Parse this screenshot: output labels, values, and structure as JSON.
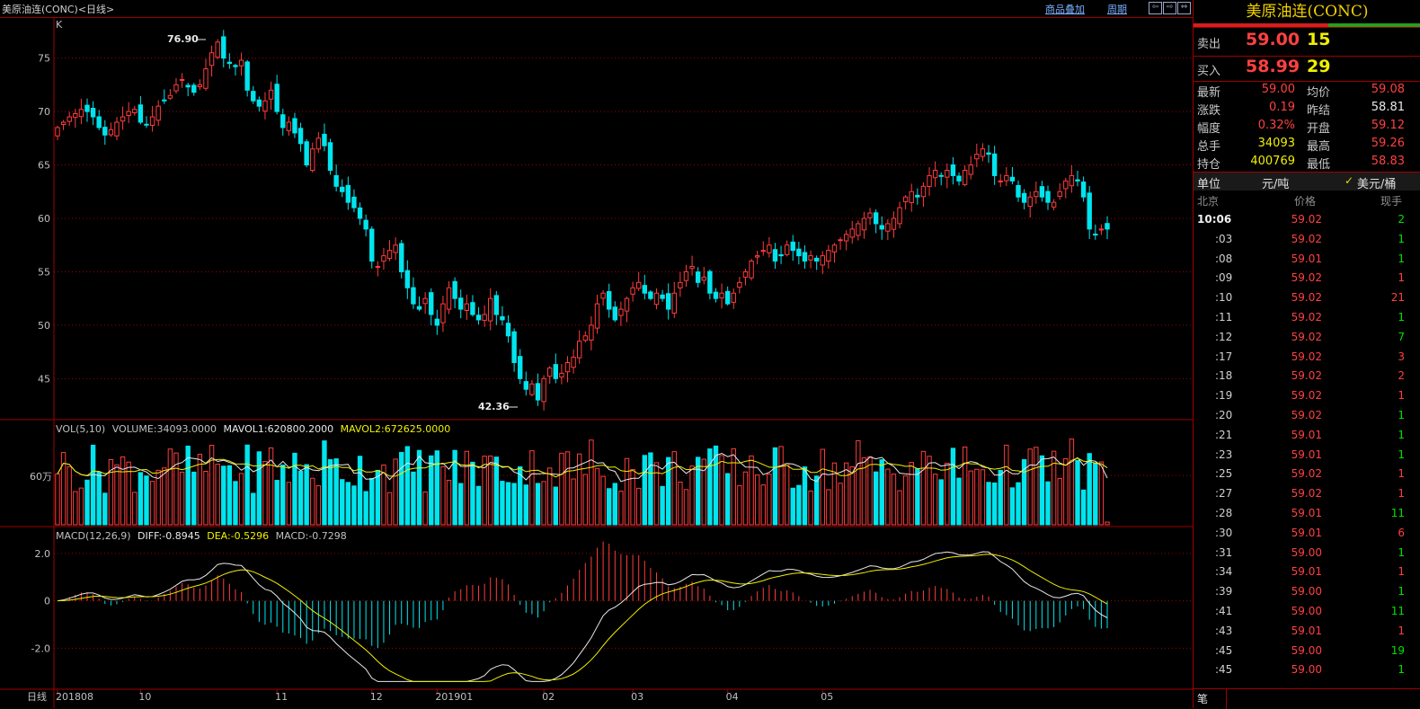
{
  "window": {
    "title": "美原油连(CONC)<日线>",
    "overlay_link": "商品叠加",
    "period_link": "周期",
    "nav_icons": [
      "arrow-left-icon",
      "arrow-right-icon",
      "arrow-both-icon"
    ]
  },
  "chart_labels": {
    "kline_tag": "K",
    "high_mark": "76.90",
    "low_mark": "42.36",
    "vol_legend": "VOL(5,10)",
    "vol_value": "VOLUME:34093.0000",
    "mavol1": "MAVOL1:620800.2000",
    "mavol2": "MAVOL2:672625.0000",
    "vol_tick": "60万",
    "macd_legend": "MACD(12,26,9)",
    "diff": "DIFF:-0.8945",
    "dea": "DEA:-0.5296",
    "macd": "MACD:-0.7298",
    "period_label": "日线"
  },
  "colors": {
    "up": "#ff3c3c",
    "down": "#00e5ee",
    "grid": "#a00000",
    "yellow": "#f0f000",
    "white": "#e8e8e8"
  },
  "chart_data": {
    "type": "candlestick",
    "price_axis_ticks": [
      75,
      70,
      65,
      60,
      55,
      50,
      45
    ],
    "price_ylim": [
      42,
      78
    ],
    "x_tick_labels": [
      "201808",
      "10",
      "11",
      "12",
      "201901",
      "02",
      "03",
      "04",
      "05"
    ],
    "x_tick_index": [
      0,
      14,
      37,
      53,
      64,
      82,
      97,
      113,
      129
    ],
    "close_approx": [
      68.5,
      69.0,
      69.5,
      69.8,
      70.2,
      70.0,
      69.5,
      68.5,
      67.8,
      68.3,
      69.0,
      69.5,
      70.0,
      70.2,
      69.0,
      68.8,
      69.5,
      70.5,
      71.0,
      71.5,
      72.5,
      73.0,
      72.3,
      71.8,
      72.5,
      74.0,
      75.5,
      76.5,
      75.0,
      74.5,
      74.2,
      74.8,
      72.0,
      71.0,
      70.5,
      71.0,
      72.0,
      70.0,
      68.5,
      69.0,
      68.0,
      67.0,
      65.0,
      66.5,
      67.5,
      66.8,
      64.5,
      63.0,
      62.5,
      61.5,
      61.0,
      60.0,
      59.0,
      56.0,
      55.5,
      56.5,
      57.0,
      57.5,
      55.0,
      53.5,
      52.0,
      51.5,
      52.5,
      51.0,
      50.0,
      52.0,
      53.5,
      52.5,
      51.5,
      52.0,
      51.0,
      50.5,
      51.0,
      52.5,
      51.0,
      50.5,
      49.0,
      46.5,
      45.0,
      44.0,
      44.5,
      43.0,
      45.0,
      46.0,
      45.0,
      45.5,
      46.5,
      47.0,
      48.5,
      49.0,
      50.0,
      52.0,
      53.0,
      51.5,
      50.5,
      51.5,
      52.5,
      53.5,
      54.0,
      53.0,
      52.5,
      53.0,
      52.5,
      51.5,
      53.0,
      54.0,
      55.0,
      55.5,
      54.0,
      54.5,
      53.0,
      52.5,
      53.0,
      52.0,
      53.0,
      54.0,
      55.0,
      56.0,
      56.5,
      57.0,
      57.5,
      56.0,
      56.5,
      57.5,
      57.0,
      56.5,
      56.0,
      56.5,
      56.0,
      56.5,
      57.0,
      57.5,
      58.0,
      58.5,
      59.0,
      59.5,
      60.0,
      60.5,
      59.5,
      59.0,
      59.5,
      60.0,
      61.0,
      62.0,
      62.5,
      62.0,
      63.0,
      64.0,
      64.5,
      64.0,
      64.5,
      64.0,
      63.5,
      64.5,
      65.0,
      66.0,
      66.5,
      66.0,
      64.0,
      63.5,
      64.0,
      63.5,
      62.0,
      61.5,
      62.0,
      62.5,
      62.0,
      61.5,
      61.5,
      62.5,
      63.5,
      64.0,
      63.5,
      62.0,
      59.0,
      58.5,
      59.0,
      59.0
    ],
    "volume_axis_tick": "60万",
    "macd_axis_ticks": [
      2.0,
      0,
      -2.0
    ],
    "macd_ylim": [
      -3.5,
      2.6
    ]
  },
  "quote": {
    "name": "美原油连(CONC)",
    "sell_label": "卖出",
    "sell_price": "59.00",
    "sell_qty": "15",
    "buy_label": "买入",
    "buy_price": "58.99",
    "buy_qty": "29",
    "rows": [
      {
        "l1": "最新",
        "v1": "59.00",
        "c1": "red",
        "l2": "均价",
        "v2": "59.08",
        "c2": "red"
      },
      {
        "l1": "涨跌",
        "v1": "0.19",
        "c1": "red",
        "l2": "昨结",
        "v2": "58.81",
        "c2": "wht"
      },
      {
        "l1": "幅度",
        "v1": "0.32%",
        "c1": "red",
        "l2": "开盘",
        "v2": "59.12",
        "c2": "red"
      },
      {
        "l1": "总手",
        "v1": "34093",
        "c1": "yel",
        "l2": "最高",
        "v2": "59.26",
        "c2": "red"
      },
      {
        "l1": "持仓",
        "v1": "400769",
        "c1": "yel",
        "l2": "最低",
        "v2": "58.83",
        "c2": "red"
      }
    ],
    "unit_label": "单位",
    "unit_opt1": "元/吨",
    "unit_opt2": "美元/桶",
    "trade_hdr": {
      "time": "北京",
      "price": "价格",
      "qty": "现手"
    },
    "trades": [
      {
        "t": "10:06",
        "p": "59.02",
        "q": "2",
        "qc": "grn"
      },
      {
        "t": ":03",
        "p": "59.02",
        "q": "1",
        "qc": "grn"
      },
      {
        "t": ":08",
        "p": "59.01",
        "q": "1",
        "qc": "grn"
      },
      {
        "t": ":09",
        "p": "59.02",
        "q": "1",
        "qc": "red"
      },
      {
        "t": ":10",
        "p": "59.02",
        "q": "21",
        "qc": "red"
      },
      {
        "t": ":11",
        "p": "59.02",
        "q": "1",
        "qc": "grn"
      },
      {
        "t": ":12",
        "p": "59.02",
        "q": "7",
        "qc": "grn"
      },
      {
        "t": ":17",
        "p": "59.02",
        "q": "3",
        "qc": "red"
      },
      {
        "t": ":18",
        "p": "59.02",
        "q": "2",
        "qc": "red"
      },
      {
        "t": ":19",
        "p": "59.02",
        "q": "1",
        "qc": "red"
      },
      {
        "t": ":20",
        "p": "59.02",
        "q": "1",
        "qc": "grn"
      },
      {
        "t": ":21",
        "p": "59.01",
        "q": "1",
        "qc": "grn"
      },
      {
        "t": ":23",
        "p": "59.01",
        "q": "1",
        "qc": "grn"
      },
      {
        "t": ":25",
        "p": "59.02",
        "q": "1",
        "qc": "red"
      },
      {
        "t": ":27",
        "p": "59.02",
        "q": "1",
        "qc": "red"
      },
      {
        "t": ":28",
        "p": "59.01",
        "q": "11",
        "qc": "grn"
      },
      {
        "t": ":30",
        "p": "59.01",
        "q": "6",
        "qc": "red"
      },
      {
        "t": ":31",
        "p": "59.00",
        "q": "1",
        "qc": "grn"
      },
      {
        "t": ":34",
        "p": "59.01",
        "q": "1",
        "qc": "red"
      },
      {
        "t": ":39",
        "p": "59.00",
        "q": "1",
        "qc": "grn"
      },
      {
        "t": ":41",
        "p": "59.00",
        "q": "11",
        "qc": "grn"
      },
      {
        "t": ":43",
        "p": "59.01",
        "q": "1",
        "qc": "red"
      },
      {
        "t": ":45",
        "p": "59.00",
        "q": "19",
        "qc": "grn"
      },
      {
        "t": ":45",
        "p": "59.00",
        "q": "1",
        "qc": "grn"
      }
    ],
    "footer_tab": "笔"
  }
}
